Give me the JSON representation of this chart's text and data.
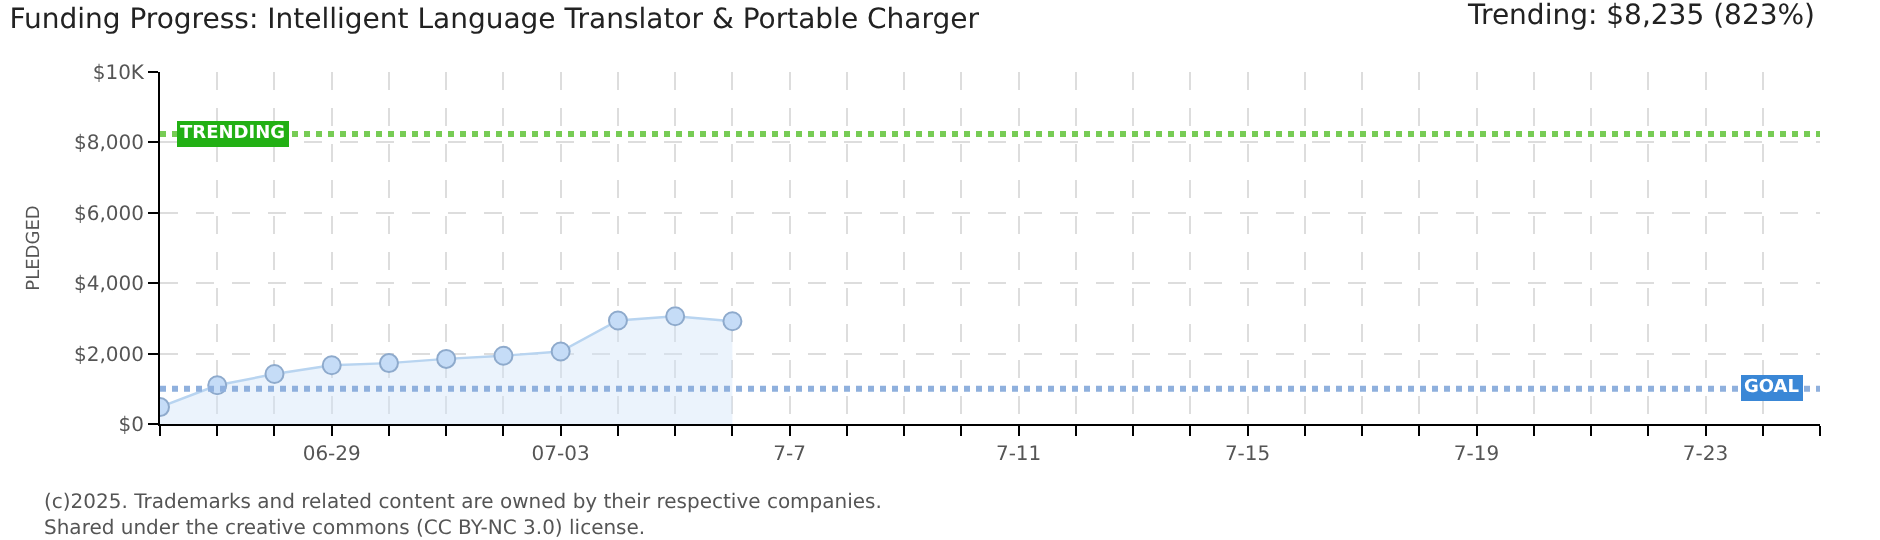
{
  "chart_data": {
    "type": "area",
    "title": "Funding Progress: Intelligent Language Translator & Portable Charger",
    "subtitle": "Trending: $8,235 (823%)",
    "ylabel": "PLEDGED",
    "x": [
      "--06-26",
      "--06-27",
      "--06-28",
      "--06-29",
      "--06-30",
      "--07-01",
      "--07-02",
      "--07-03",
      "--07-04",
      "--07-05",
      "--07-06"
    ],
    "series": [
      {
        "color": "#b8d4f0",
        "values": [
          480,
          1100,
          1420,
          1670,
          1730,
          1850,
          1940,
          2060,
          2940,
          3060,
          2920
        ]
      }
    ],
    "marker": "circle",
    "grid": true,
    "xlim": [
      "--06-26",
      "--07-25"
    ],
    "xticks": [
      {
        "value": "--06-26",
        "label": null
      },
      {
        "value": "--06-27",
        "label": null
      },
      {
        "value": "--06-28",
        "label": null
      },
      {
        "value": "--06-29",
        "label": "06-29"
      },
      {
        "value": "--06-30",
        "label": null
      },
      {
        "value": "--07-01",
        "label": null
      },
      {
        "value": "--07-02",
        "label": null
      },
      {
        "value": "--07-03",
        "label": "07-03"
      },
      {
        "value": "--07-04",
        "label": null
      },
      {
        "value": "--07-05",
        "label": null
      },
      {
        "value": "--07-06",
        "label": null
      },
      {
        "value": "--07-07",
        "label": "7-7"
      },
      {
        "value": "--07-08",
        "label": null
      },
      {
        "value": "--07-09",
        "label": null
      },
      {
        "value": "--07-10",
        "label": null
      },
      {
        "value": "--07-11",
        "label": "7-11"
      },
      {
        "value": "--07-12",
        "label": null
      },
      {
        "value": "--07-13",
        "label": null
      },
      {
        "value": "--07-14",
        "label": null
      },
      {
        "value": "--07-15",
        "label": "7-15"
      },
      {
        "value": "--07-16",
        "label": null
      },
      {
        "value": "--07-17",
        "label": null
      },
      {
        "value": "--07-18",
        "label": null
      },
      {
        "value": "--07-19",
        "label": "7-19"
      },
      {
        "value": "--07-20",
        "label": null
      },
      {
        "value": "--07-21",
        "label": null
      },
      {
        "value": "--07-22",
        "label": null
      },
      {
        "value": "--07-23",
        "label": "7-23"
      },
      {
        "value": "--07-24",
        "label": null
      },
      {
        "value": "--07-25",
        "label": null
      }
    ],
    "ylim": [
      0,
      10000
    ],
    "yticks": [
      {
        "value": 0,
        "label": "$0"
      },
      {
        "value": 2000,
        "label": "$2,000"
      },
      {
        "value": 4000,
        "label": "$4,000"
      },
      {
        "value": 6000,
        "label": "$6,000"
      },
      {
        "value": 8000,
        "label": "$8,000"
      },
      {
        "value": 10000,
        "label": "$10K"
      }
    ],
    "ref_lines": [
      {
        "axis": "y",
        "value": 8235,
        "label": "TRENDING",
        "color": "#77cc55",
        "line_style": "dotted"
      },
      {
        "axis": "y",
        "value": 1000,
        "label": "GOAL",
        "color": "#8fb0dd",
        "line_style": "dotted"
      }
    ],
    "annotations": [
      "(c)2025. Trademarks and related content are owned by their respective companies.",
      "Shared under the creative commons (CC BY-NC 3.0) license."
    ]
  }
}
